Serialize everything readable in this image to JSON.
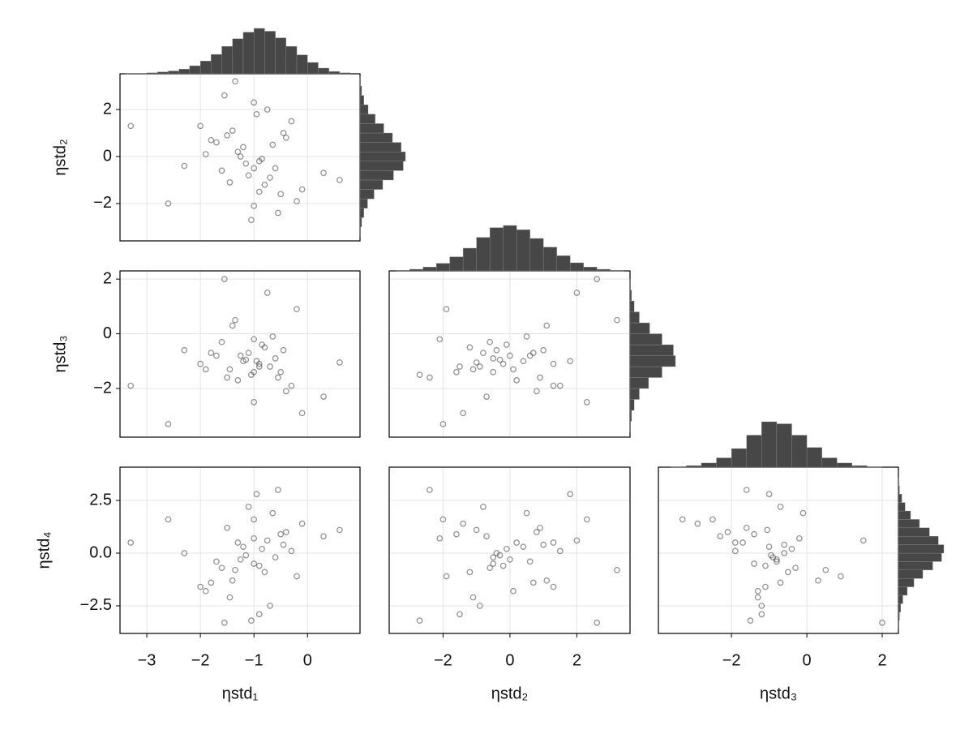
{
  "chart_data": [
    {
      "type": "scatter",
      "color": "#4d4d4d",
      "y_label": "ηstd₂",
      "xlim": [
        -3.5,
        0.98
      ],
      "ylim": [
        -3.59,
        3.52
      ],
      "yticks": [
        {
          "value": -2,
          "label": "−2"
        },
        0,
        2
      ],
      "x": [
        -1.2,
        -0.8,
        -1.5,
        -0.6,
        -1.0,
        -1.9,
        -0.3,
        -1.1,
        -0.9,
        -1.4,
        -0.5,
        -1.7,
        -1.0,
        -0.7,
        -2.3,
        -1.3,
        -0.2,
        -0.95,
        -1.6,
        -0.4,
        -1.05,
        -0.85,
        -2.0,
        -0.1,
        -1.25,
        -0.75,
        -1.45,
        -0.65,
        -3.3,
        -1.15,
        -0.55,
        -1.8,
        0.3,
        -1.35,
        -0.9,
        -2.6,
        -0.45,
        -1.0,
        -1.55,
        0.6
      ],
      "values": [
        0.4,
        -1.2,
        0.9,
        -0.5,
        -2.1,
        0.1,
        1.5,
        -0.8,
        -0.2,
        1.1,
        -1.6,
        0.6,
        2.3,
        -0.9,
        -0.4,
        0.2,
        -1.9,
        1.8,
        -0.6,
        0.8,
        -2.7,
        -0.1,
        1.3,
        -1.4,
        0.0,
        2.0,
        -1.1,
        0.5,
        1.3,
        -0.3,
        -2.4,
        0.7,
        -0.7,
        3.2,
        -1.5,
        -2.0,
        1.0,
        -0.5,
        2.6,
        -1.0
      ],
      "x_hist": {
        "type": "histogram",
        "color": "#474747",
        "bins": [
          -3.4,
          -3.2,
          -3.0,
          -2.8,
          -2.6,
          -2.4,
          -2.2,
          -2.0,
          -1.8,
          -1.6,
          -1.4,
          -1.2,
          -1.0,
          -0.8,
          -0.6,
          -0.4,
          -0.2,
          0.0,
          0.2,
          0.4,
          0.6,
          0.8
        ],
        "values": [
          1,
          1,
          2,
          4,
          6,
          10,
          17,
          27,
          41,
          58,
          74,
          88,
          96,
          90,
          76,
          58,
          40,
          24,
          12,
          5,
          2
        ]
      },
      "y_hist": {
        "type": "histogram",
        "color": "#474747",
        "bins": [
          -3.4,
          -3.0,
          -2.6,
          -2.2,
          -1.8,
          -1.4,
          -1.0,
          -0.6,
          -0.2,
          0.2,
          0.6,
          1.0,
          1.4,
          1.8,
          2.2,
          2.6,
          3.0,
          3.4
        ],
        "values": [
          1,
          3,
          7,
          14,
          26,
          42,
          62,
          80,
          84,
          76,
          60,
          44,
          28,
          15,
          7,
          3,
          1
        ]
      }
    },
    {
      "type": "scatter",
      "color": "#4d4d4d",
      "y_label": "ηstd₃",
      "xlim": [
        -3.5,
        0.98
      ],
      "ylim": [
        -3.78,
        2.3
      ],
      "yticks": [
        {
          "value": -2,
          "label": "−2"
        },
        0,
        2
      ],
      "x": [
        -1.2,
        -0.8,
        -1.5,
        -0.6,
        -1.0,
        -1.9,
        -0.3,
        -1.1,
        -0.9,
        -1.4,
        -0.5,
        -1.7,
        -1.0,
        -0.7,
        -2.3,
        -1.3,
        -0.2,
        -0.95,
        -1.6,
        -0.4,
        -1.05,
        -0.85,
        -2.0,
        -0.1,
        -1.25,
        -0.75,
        -1.45,
        -0.65,
        -3.3,
        -1.15,
        -0.55,
        -1.8,
        0.3,
        -1.35,
        -0.9,
        -2.6,
        -0.45,
        -1.0,
        -1.55,
        0.6
      ],
      "values": [
        -1.0,
        -0.5,
        -1.6,
        -0.9,
        -0.2,
        -1.3,
        -1.9,
        -0.7,
        -1.1,
        0.3,
        -1.4,
        -0.8,
        -2.5,
        -1.2,
        -0.6,
        -1.7,
        0.9,
        -1.0,
        -0.3,
        -2.1,
        -1.5,
        -0.4,
        -1.1,
        -2.9,
        -0.8,
        1.5,
        -1.3,
        -0.1,
        -1.9,
        -0.95,
        -1.6,
        -0.7,
        -2.3,
        0.5,
        -1.2,
        -3.3,
        -0.6,
        -1.4,
        2.0,
        -1.05
      ]
    },
    {
      "type": "scatter",
      "color": "#4d4d4d",
      "xlim": [
        -3.61,
        3.59
      ],
      "ylim": [
        -3.78,
        2.3
      ],
      "x": [
        0.4,
        -1.2,
        0.9,
        -0.5,
        -2.1,
        0.1,
        1.5,
        -0.8,
        -0.2,
        1.1,
        -1.6,
        0.6,
        2.3,
        -0.9,
        -0.4,
        0.2,
        -1.9,
        1.8,
        -0.6,
        0.8,
        -2.7,
        -0.1,
        1.3,
        -1.4,
        0.0,
        2.0,
        -1.1,
        0.5,
        1.3,
        -0.3,
        -2.4,
        0.7,
        -0.7,
        3.2,
        -1.5,
        -2.0,
        1.0,
        -0.5,
        2.6,
        -1.0
      ],
      "values": [
        -1.0,
        -0.5,
        -1.6,
        -0.9,
        -0.2,
        -1.3,
        -1.9,
        -0.7,
        -1.1,
        0.3,
        -1.4,
        -0.8,
        -2.5,
        -1.2,
        -0.6,
        -1.7,
        0.9,
        -1.0,
        -0.3,
        -2.1,
        -1.5,
        -0.4,
        -1.1,
        -2.9,
        -0.8,
        1.5,
        -1.3,
        -0.1,
        -1.9,
        -0.95,
        -1.6,
        -0.7,
        -2.3,
        0.5,
        -1.2,
        -3.3,
        -0.6,
        -1.4,
        2.0,
        -1.05
      ],
      "x_hist": {
        "type": "histogram",
        "color": "#474747",
        "bins": [
          -3.4,
          -3.0,
          -2.6,
          -2.2,
          -1.8,
          -1.4,
          -1.0,
          -0.6,
          -0.2,
          0.2,
          0.6,
          1.0,
          1.4,
          1.8,
          2.2,
          2.6,
          3.0,
          3.4
        ],
        "values": [
          1,
          3,
          7,
          14,
          26,
          42,
          62,
          80,
          84,
          76,
          60,
          44,
          28,
          15,
          7,
          3,
          1
        ]
      },
      "y_hist": {
        "type": "histogram",
        "color": "#474747",
        "bins": [
          -3.6,
          -3.2,
          -2.8,
          -2.4,
          -2.0,
          -1.6,
          -1.2,
          -0.8,
          -0.4,
          0.0,
          0.4,
          0.8,
          1.2,
          1.6,
          2.0
        ],
        "values": [
          1,
          3,
          8,
          18,
          36,
          62,
          88,
          84,
          62,
          38,
          18,
          8,
          3,
          1
        ]
      }
    },
    {
      "type": "scatter",
      "color": "#4d4d4d",
      "x_label": "ηstd₁",
      "y_label": "ηstd₄",
      "xlim": [
        -3.5,
        0.98
      ],
      "ylim": [
        -3.81,
        4.08
      ],
      "xticks": [
        {
          "value": -3,
          "label": "−3"
        },
        {
          "value": -2,
          "label": "−2"
        },
        {
          "value": -1,
          "label": "−1"
        },
        0
      ],
      "yticks": [
        {
          "value": -2.5,
          "label": "−2.5"
        },
        {
          "value": 0,
          "label": "0.0"
        },
        2.5
      ],
      "x": [
        -1.2,
        -0.8,
        -1.5,
        -0.6,
        -1.0,
        -1.9,
        -0.3,
        -1.1,
        -0.9,
        -1.4,
        -0.5,
        -1.7,
        -1.0,
        -0.7,
        -2.3,
        -1.3,
        -0.2,
        -0.95,
        -1.6,
        -0.4,
        -1.05,
        -0.85,
        -2.0,
        -0.1,
        -1.25,
        -0.75,
        -1.45,
        -0.65,
        -3.3,
        -1.15,
        -0.55,
        -1.8,
        0.3,
        -1.35,
        -0.9,
        -2.6,
        -0.45,
        -1.0,
        -1.55,
        0.6
      ],
      "values": [
        0.3,
        -0.9,
        1.2,
        -0.2,
        0.7,
        -1.8,
        0.1,
        2.2,
        -0.6,
        -1.3,
        0.9,
        -0.4,
        1.6,
        -2.5,
        0.0,
        0.5,
        -1.1,
        2.8,
        -0.7,
        1.0,
        -3.2,
        0.2,
        -1.6,
        1.4,
        -0.3,
        0.6,
        -2.1,
        1.9,
        0.5,
        -0.1,
        3.0,
        -1.4,
        0.8,
        -0.8,
        -2.9,
        1.6,
        0.4,
        -0.5,
        -3.3,
        1.1
      ]
    },
    {
      "type": "scatter",
      "color": "#4d4d4d",
      "x_label": "ηstd₂",
      "xlim": [
        -3.61,
        3.59
      ],
      "ylim": [
        -3.81,
        4.08
      ],
      "xticks": [
        {
          "value": -2,
          "label": "−2"
        },
        0,
        2
      ],
      "x": [
        0.4,
        -1.2,
        0.9,
        -0.5,
        -2.1,
        0.1,
        1.5,
        -0.8,
        -0.2,
        1.1,
        -1.6,
        0.6,
        2.3,
        -0.9,
        -0.4,
        0.2,
        -1.9,
        1.8,
        -0.6,
        0.8,
        -2.7,
        -0.1,
        1.3,
        -1.4,
        0.0,
        2.0,
        -1.1,
        0.5,
        1.3,
        -0.3,
        -2.4,
        0.7,
        -0.7,
        3.2,
        -1.5,
        -2.0,
        1.0,
        -0.5,
        2.6,
        -1.0
      ],
      "values": [
        0.3,
        -0.9,
        1.2,
        -0.2,
        0.7,
        -1.8,
        0.1,
        2.2,
        -0.6,
        -1.3,
        0.9,
        -0.4,
        1.6,
        -2.5,
        0.0,
        0.5,
        -1.1,
        2.8,
        -0.7,
        1.0,
        -3.2,
        0.2,
        -1.6,
        1.4,
        -0.3,
        0.6,
        -2.1,
        1.9,
        0.5,
        -0.1,
        3.0,
        -1.4,
        0.8,
        -0.8,
        -2.9,
        1.6,
        0.4,
        -0.5,
        -3.3,
        1.1
      ]
    },
    {
      "type": "scatter",
      "color": "#4d4d4d",
      "x_label": "ηstd₃",
      "xlim": [
        -3.94,
        2.43
      ],
      "ylim": [
        -3.81,
        4.08
      ],
      "xticks": [
        {
          "value": -2,
          "label": "−2"
        },
        0,
        2
      ],
      "x": [
        -1.0,
        -0.5,
        -1.6,
        -0.9,
        -0.2,
        -1.3,
        -1.9,
        -0.7,
        -1.1,
        0.3,
        -1.4,
        -0.8,
        -2.5,
        -1.2,
        -0.6,
        -1.7,
        0.9,
        -1.0,
        -0.3,
        -2.1,
        -1.5,
        -0.4,
        -1.1,
        -2.9,
        -0.8,
        1.5,
        -1.3,
        -0.1,
        -1.9,
        -0.95,
        -1.6,
        -0.7,
        -2.3,
        0.5,
        -1.2,
        -3.3,
        -0.6,
        -1.4,
        2.0,
        -1.05
      ],
      "values": [
        0.3,
        -0.9,
        1.2,
        -0.2,
        0.7,
        -1.8,
        0.1,
        2.2,
        -0.6,
        -1.3,
        0.9,
        -0.4,
        1.6,
        -2.5,
        0.0,
        0.5,
        -1.1,
        2.8,
        -0.7,
        1.0,
        -3.2,
        0.2,
        -1.6,
        1.4,
        -0.3,
        0.6,
        -2.1,
        1.9,
        0.5,
        -0.1,
        3.0,
        -1.4,
        0.8,
        -0.8,
        -2.9,
        1.6,
        0.4,
        -0.5,
        -3.3,
        1.1
      ],
      "x_hist": {
        "type": "histogram",
        "color": "#474747",
        "bins": [
          -3.6,
          -3.2,
          -2.8,
          -2.4,
          -2.0,
          -1.6,
          -1.2,
          -0.8,
          -0.4,
          0.0,
          0.4,
          0.8,
          1.2,
          1.6,
          2.0
        ],
        "values": [
          1,
          3,
          8,
          18,
          36,
          62,
          88,
          84,
          62,
          38,
          18,
          8,
          3,
          1
        ]
      },
      "y_hist": {
        "type": "histogram",
        "color": "#474747",
        "bins": [
          -3.6,
          -3.2,
          -2.8,
          -2.4,
          -2.0,
          -1.6,
          -1.2,
          -0.8,
          -0.4,
          0.0,
          0.4,
          0.8,
          1.2,
          1.6,
          2.0,
          2.4,
          2.8,
          3.2,
          3.6
        ],
        "values": [
          1,
          2,
          4,
          8,
          16,
          28,
          44,
          62,
          78,
          82,
          72,
          56,
          38,
          22,
          12,
          6,
          2,
          1
        ]
      }
    }
  ]
}
